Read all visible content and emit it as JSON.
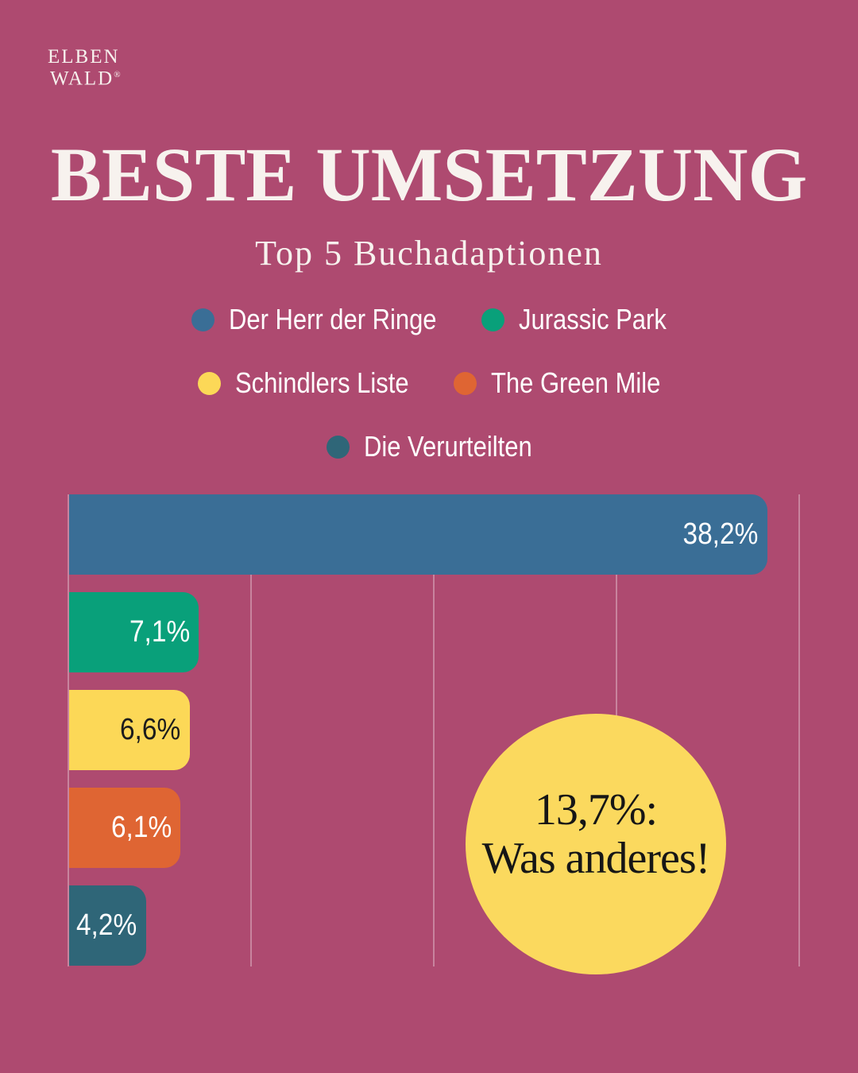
{
  "colors": {
    "background": "#ae4a70",
    "title_text": "#f7f2ee",
    "gridline": "rgba(255,255,255,0.32)"
  },
  "logo": {
    "line1": "ELBEN",
    "line2": "WALD",
    "registered_mark": "®"
  },
  "header": {
    "title": "BESTE UMSETZUNG",
    "subtitle": "Top 5 Buchadaptionen"
  },
  "legend": {
    "rows": [
      [
        0,
        1
      ],
      [
        2,
        3
      ],
      [
        4
      ]
    ]
  },
  "chart_data": {
    "type": "bar",
    "orientation": "horizontal",
    "title": "BESTE UMSETZUNG",
    "subtitle": "Top 5 Buchadaptionen",
    "categories": [
      "Der Herr der Ringe",
      "Jurassic Park",
      "Schindlers Liste",
      "The Green Mile",
      "Die Verurteilten"
    ],
    "values": [
      38.2,
      7.1,
      6.6,
      6.1,
      4.2
    ],
    "value_labels": [
      "38,2%",
      "7,1%",
      "6,6%",
      "6,1%",
      "4,2%"
    ],
    "bar_colors": [
      "#3a6e96",
      "#09a07a",
      "#fcd857",
      "#df6533",
      "#2f6678"
    ],
    "value_label_colors": [
      "#ffffff",
      "#ffffff",
      "#1c1c1c",
      "#ffffff",
      "#ffffff"
    ],
    "xlim": [
      0,
      40
    ],
    "gridline_values": [
      0,
      10,
      20,
      30,
      40
    ],
    "legend_position": "top",
    "grid": "vertical"
  },
  "callout": {
    "line1": "13,7%:",
    "line2": "Was anderes!",
    "background": "#fbd95e"
  }
}
